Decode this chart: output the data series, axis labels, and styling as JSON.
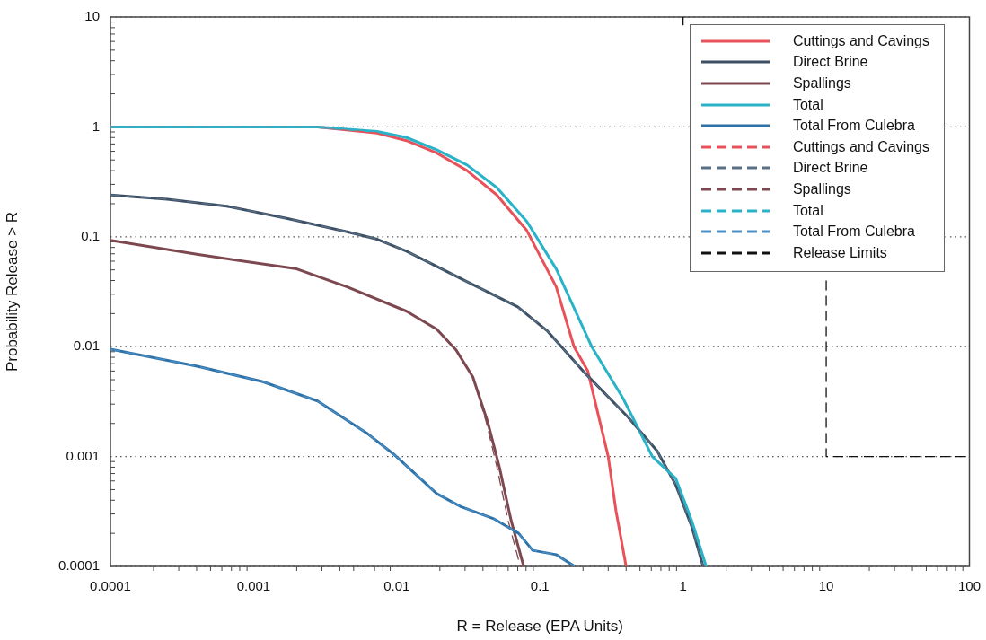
{
  "chart_data": {
    "type": "line",
    "xlabel": "R = Release (EPA Units)",
    "ylabel": "Probability Release > R",
    "log": "xy",
    "grid": "y",
    "legend": "top right",
    "marker": "none",
    "xlim": [
      0.0001,
      100
    ],
    "xticks": [
      0.0001,
      0.001,
      0.01,
      0.1,
      1,
      10,
      100
    ],
    "ylim": [
      0.0001,
      10
    ],
    "yticks": [
      0.0001,
      0.001,
      0.01,
      0.1,
      1,
      10
    ],
    "series": [
      {
        "name": "Cuttings and Cavings",
        "color": "#e8525a",
        "line_style": "solid",
        "x": [
          0.0001,
          0.0028,
          0.0073,
          0.0117,
          0.019,
          0.031,
          0.05,
          0.081,
          0.13,
          0.173,
          0.216,
          0.3,
          0.34,
          0.4
        ],
        "values": [
          1,
          1,
          0.88,
          0.75,
          0.58,
          0.4,
          0.24,
          0.114,
          0.035,
          0.01,
          0.006,
          0.001,
          0.00032,
          0.0001
        ]
      },
      {
        "name": "Direct Brine",
        "color": "#3d4f63",
        "line_style": "solid",
        "x": [
          0.0001,
          0.00025,
          0.00065,
          0.0017,
          0.0045,
          0.0073,
          0.0117,
          0.031,
          0.07,
          0.112,
          0.2,
          0.41,
          0.66,
          0.89,
          1.15,
          1.38
        ],
        "values": [
          0.24,
          0.22,
          0.19,
          0.147,
          0.111,
          0.095,
          0.074,
          0.039,
          0.023,
          0.014,
          0.006,
          0.0023,
          0.00112,
          0.00055,
          0.00023,
          0.0001
        ]
      },
      {
        "name": "Spallings",
        "color": "#7d4850",
        "line_style": "solid",
        "x": [
          0.0001,
          0.00041,
          0.002,
          0.0045,
          0.0117,
          0.019,
          0.026,
          0.034,
          0.043,
          0.052,
          0.063,
          0.077
        ],
        "values": [
          0.093,
          0.069,
          0.051,
          0.035,
          0.021,
          0.0144,
          0.0093,
          0.0053,
          0.0021,
          0.00081,
          0.00026,
          0.0001
        ]
      },
      {
        "name": "Total",
        "color": "#2ab3c8",
        "line_style": "solid",
        "x": [
          0.0001,
          0.0028,
          0.0073,
          0.0117,
          0.019,
          0.031,
          0.05,
          0.081,
          0.13,
          0.23,
          0.38,
          0.61,
          0.89,
          1.15,
          1.45
        ],
        "values": [
          1,
          1,
          0.91,
          0.8,
          0.62,
          0.45,
          0.28,
          0.138,
          0.051,
          0.01,
          0.0034,
          0.001,
          0.00063,
          0.00026,
          0.0001
        ]
      },
      {
        "name": "Total From Culebra",
        "color": "#2f72a8",
        "line_style": "solid",
        "x": [
          0.0001,
          0.00041,
          0.00116,
          0.0028,
          0.0063,
          0.0097,
          0.019,
          0.028,
          0.048,
          0.071,
          0.089,
          0.13,
          0.175
        ],
        "values": [
          0.0095,
          0.0066,
          0.0048,
          0.0032,
          0.0016,
          0.00103,
          0.00046,
          0.00035,
          0.00027,
          0.0002,
          0.00014,
          0.000128,
          0.0001
        ]
      },
      {
        "name": "Cuttings and Cavings",
        "color": "#e8525a",
        "line_style": "dashed",
        "x": [
          0.0001,
          0.0028,
          0.0073,
          0.0117,
          0.019,
          0.031,
          0.05,
          0.081,
          0.13,
          0.173,
          0.216,
          0.3,
          0.34,
          0.4
        ],
        "values": [
          1,
          1,
          0.88,
          0.75,
          0.58,
          0.4,
          0.24,
          0.114,
          0.035,
          0.01,
          0.006,
          0.001,
          0.00032,
          0.0001
        ]
      },
      {
        "name": "Direct Brine",
        "color": "#5a7088",
        "line_style": "dashed",
        "x": [
          0.0001,
          0.00025,
          0.00065,
          0.0017,
          0.0045,
          0.0073,
          0.0117,
          0.031,
          0.07,
          0.112,
          0.2,
          0.41,
          0.66,
          0.89,
          1.15,
          1.38
        ],
        "values": [
          0.24,
          0.22,
          0.19,
          0.147,
          0.111,
          0.095,
          0.074,
          0.039,
          0.023,
          0.014,
          0.006,
          0.0023,
          0.00112,
          0.00055,
          0.00023,
          0.0001
        ]
      },
      {
        "name": "Spallings",
        "color": "#7d4850",
        "line_style": "dashed",
        "x": [
          0.0001,
          0.00041,
          0.002,
          0.0045,
          0.0117,
          0.019,
          0.026,
          0.034,
          0.042,
          0.05,
          0.06,
          0.073
        ],
        "values": [
          0.093,
          0.069,
          0.051,
          0.035,
          0.021,
          0.0144,
          0.0093,
          0.0053,
          0.0021,
          0.00081,
          0.00026,
          0.0001
        ]
      },
      {
        "name": "Total",
        "color": "#2ab3c8",
        "line_style": "dashed",
        "x": [
          0.0001,
          0.0028,
          0.0073,
          0.0117,
          0.019,
          0.031,
          0.05,
          0.081,
          0.13,
          0.23,
          0.38,
          0.61,
          0.89,
          1.15,
          1.45
        ],
        "values": [
          1,
          1,
          0.91,
          0.8,
          0.62,
          0.45,
          0.28,
          0.138,
          0.051,
          0.01,
          0.0034,
          0.001,
          0.00063,
          0.00026,
          0.0001
        ]
      },
      {
        "name": "Total From Culebra",
        "color": "#4a90c8",
        "line_style": "dashed",
        "x": [
          0.0001,
          0.00041,
          0.00116,
          0.0028,
          0.0063,
          0.0097,
          0.019,
          0.028,
          0.048,
          0.071,
          0.089,
          0.13,
          0.175
        ],
        "values": [
          0.0095,
          0.0066,
          0.0048,
          0.0032,
          0.0016,
          0.00103,
          0.00046,
          0.00035,
          0.00027,
          0.0002,
          0.00014,
          0.000128,
          0.0001
        ]
      },
      {
        "name": "Release Limits",
        "color": "#111111",
        "line_style": "dashed",
        "x": [
          1,
          1,
          5,
          10,
          10,
          100
        ],
        "values": [
          10,
          8.4,
          null,
          0.04,
          0.001,
          0.001
        ]
      }
    ]
  }
}
